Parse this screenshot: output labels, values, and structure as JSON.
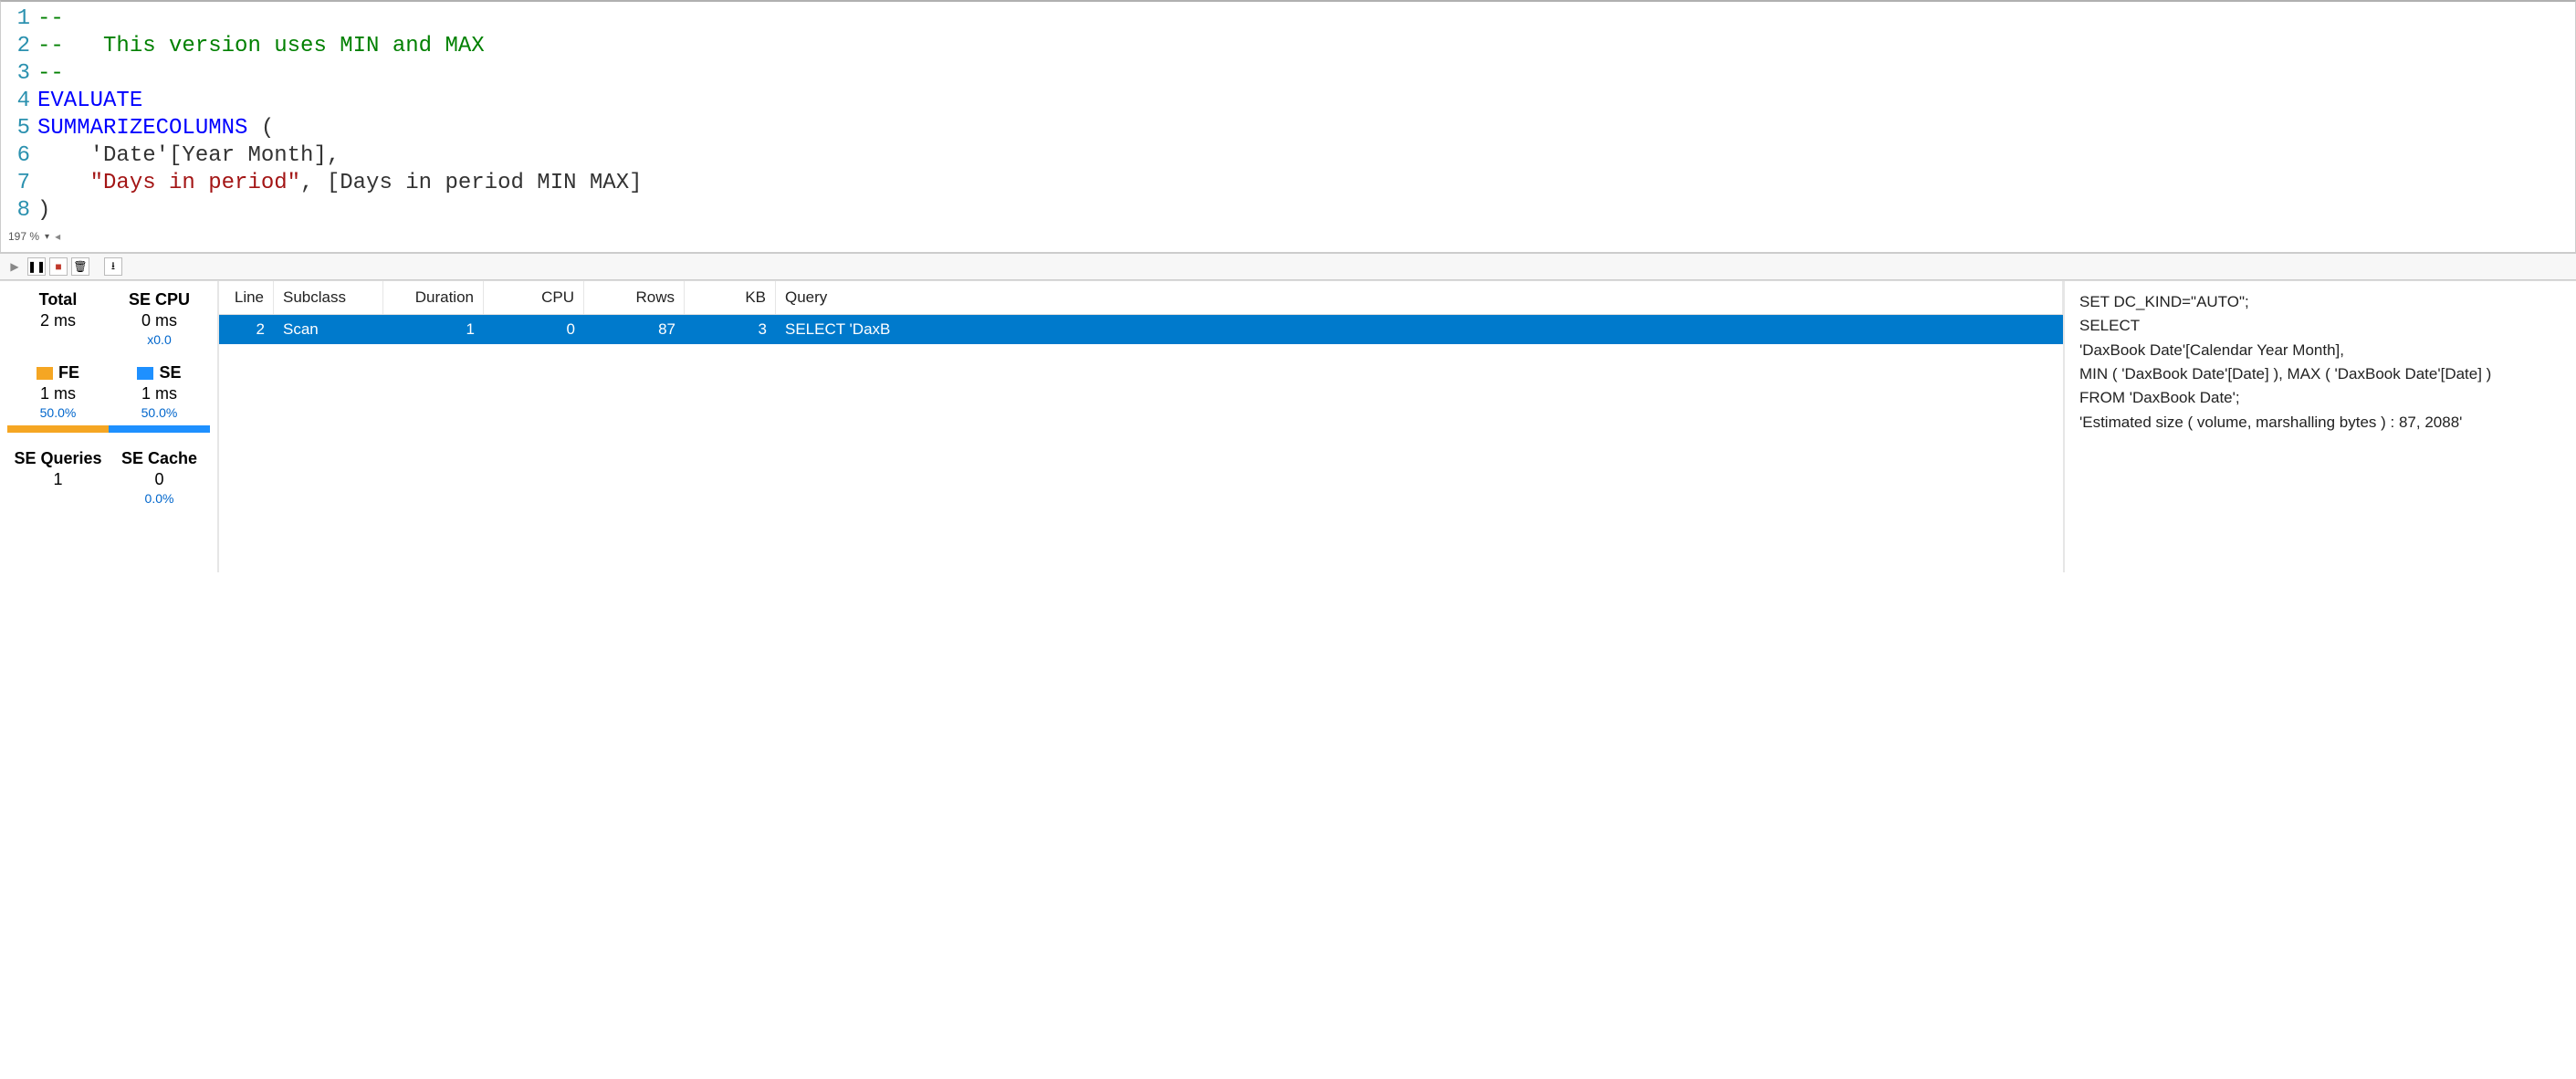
{
  "editor": {
    "zoom_label": "197 %",
    "lines": [
      {
        "n": 1,
        "tokens": [
          {
            "t": "--",
            "c": "comment"
          }
        ]
      },
      {
        "n": 2,
        "tokens": [
          {
            "t": "--   This version uses MIN and MAX",
            "c": "comment"
          }
        ]
      },
      {
        "n": 3,
        "tokens": [
          {
            "t": "--",
            "c": "comment"
          }
        ]
      },
      {
        "n": 4,
        "tokens": [
          {
            "t": "EVALUATE",
            "c": "keyword"
          }
        ]
      },
      {
        "n": 5,
        "tokens": [
          {
            "t": "SUMMARIZECOLUMNS",
            "c": "keyword"
          },
          {
            "t": " (",
            "c": "default"
          }
        ]
      },
      {
        "n": 6,
        "tokens": [
          {
            "t": "    'Date'[Year Month],",
            "c": "default"
          }
        ]
      },
      {
        "n": 7,
        "tokens": [
          {
            "t": "    ",
            "c": "default"
          },
          {
            "t": "\"Days in period\"",
            "c": "string"
          },
          {
            "t": ", [Days in period MIN MAX]",
            "c": "default"
          }
        ]
      },
      {
        "n": 8,
        "tokens": [
          {
            "t": ")",
            "c": "default"
          }
        ]
      }
    ]
  },
  "toolbar": {
    "play": "▶",
    "pause": "❚❚",
    "stop": "■",
    "clear": "🗑",
    "download": "⭳"
  },
  "stats": {
    "total_label": "Total",
    "total_value": "2 ms",
    "secpu_label": "SE CPU",
    "secpu_value": "0 ms",
    "secpu_ratio": "x0.0",
    "fe_label": "FE",
    "fe_value": "1 ms",
    "fe_pct_label": "50.0%",
    "fe_pct": 50,
    "fe_color": "#f5a623",
    "se_label": "SE",
    "se_value": "1 ms",
    "se_pct_label": "50.0%",
    "se_pct": 50,
    "se_color": "#1e90ff",
    "seq_label": "SE Queries",
    "seq_value": "1",
    "secache_label": "SE Cache",
    "secache_value": "0",
    "secache_pct": "0.0%"
  },
  "grid": {
    "headers": {
      "line": "Line",
      "subclass": "Subclass",
      "duration": "Duration",
      "cpu": "CPU",
      "rows": "Rows",
      "kb": "KB",
      "query": "Query"
    },
    "row": {
      "line": "2",
      "subclass": "Scan",
      "duration": "1",
      "cpu": "0",
      "rows": "87",
      "kb": "3",
      "query": "SELECT 'DaxB"
    },
    "row_bg": "#007acc"
  },
  "detail": {
    "l1": "SET DC_KIND=\"AUTO\";",
    "l2": "SELECT",
    "l3": "'DaxBook Date'[Calendar Year Month],",
    "l4": "MIN ( 'DaxBook Date'[Date] ), MAX ( 'DaxBook Date'[Date] )",
    "l5": "FROM 'DaxBook Date';",
    "blank": "",
    "l6": "'Estimated size ( volume, marshalling bytes ) : 87, 2088'"
  }
}
